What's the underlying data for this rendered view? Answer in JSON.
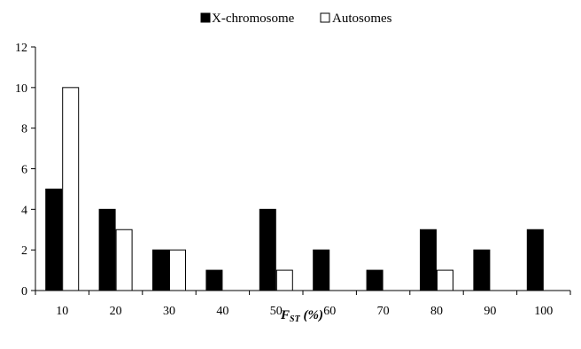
{
  "chart_data": {
    "type": "bar",
    "title": "",
    "xlabel": "F_ST (%)",
    "xlabel_main": "F",
    "xlabel_sub": "ST",
    "xlabel_suffix": " (%)",
    "ylabel": "",
    "categories": [
      "10",
      "20",
      "30",
      "40",
      "50",
      "60",
      "70",
      "80",
      "90",
      "100"
    ],
    "series": [
      {
        "name": "X-chromosome",
        "color": "#000000",
        "values": [
          5,
          4,
          2,
          1,
          4,
          2,
          1,
          3,
          2,
          3
        ]
      },
      {
        "name": "Autosomes",
        "color": "#ffffff",
        "values": [
          10,
          3,
          2,
          0,
          1,
          0,
          0,
          1,
          0,
          0
        ]
      }
    ],
    "ylim": [
      0,
      12
    ],
    "yticks": [
      "0",
      "2",
      "4",
      "6",
      "8",
      "10",
      "12"
    ],
    "grid": false,
    "legend_position": "top-center"
  }
}
